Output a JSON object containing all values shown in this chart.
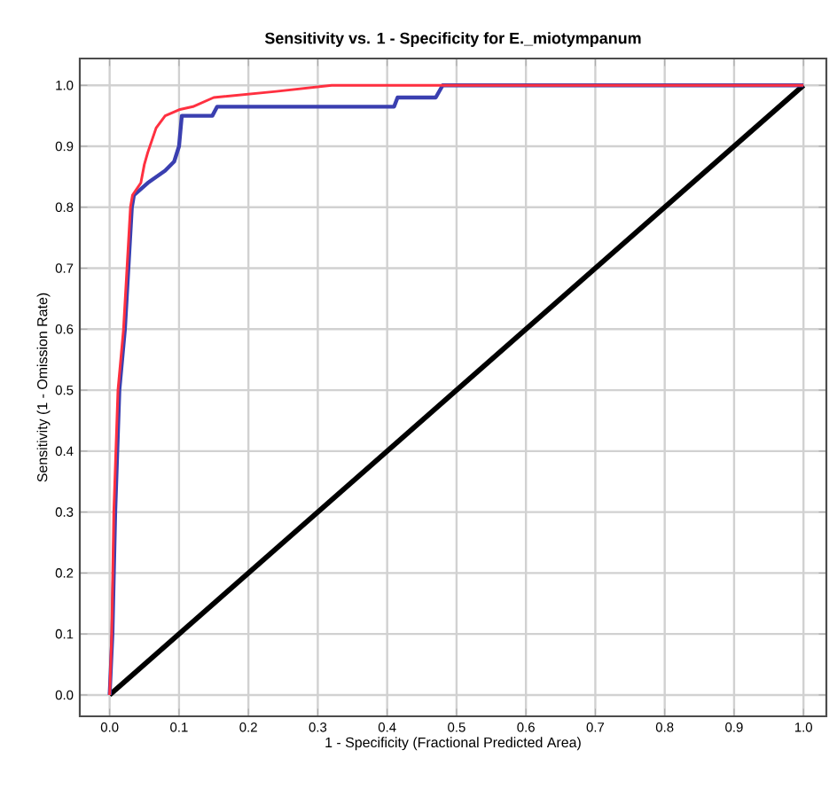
{
  "chart_data": {
    "type": "line",
    "title": "Sensitivity vs. 1 - Specificity for E._miotympanum",
    "xlabel": "1 - Specificity  (Fractional Predicted Area)",
    "ylabel": "Sensitivity  (1 - Omission Rate)",
    "series": [
      {
        "color": "#ff3040",
        "x": [
          0,
          0.003,
          0.006,
          0.012,
          0.02,
          0.025,
          0.03,
          0.033,
          0.045,
          0.05,
          0.055,
          0.067,
          0.08,
          0.1,
          0.12,
          0.15,
          0.24,
          0.32,
          1
        ],
        "values": [
          0,
          0.1,
          0.3,
          0.5,
          0.6,
          0.7,
          0.8,
          0.82,
          0.84,
          0.87,
          0.89,
          0.93,
          0.95,
          0.96,
          0.965,
          0.98,
          0.99,
          1.0,
          1.0
        ]
      },
      {
        "color": "#3a3fb0",
        "x": [
          0,
          0.004,
          0.008,
          0.014,
          0.022,
          0.027,
          0.032,
          0.035,
          0.055,
          0.08,
          0.093,
          0.1,
          0.104,
          0.148,
          0.155,
          0.41,
          0.415,
          0.47,
          0.48,
          1
        ],
        "values": [
          0,
          0.1,
          0.3,
          0.5,
          0.6,
          0.7,
          0.8,
          0.82,
          0.84,
          0.86,
          0.875,
          0.9,
          0.95,
          0.95,
          0.965,
          0.965,
          0.98,
          0.98,
          1.0,
          1.0
        ]
      },
      {
        "color": "#000000",
        "x": [
          0,
          1
        ],
        "values": [
          0,
          1
        ]
      }
    ],
    "xlim": [
      -0.043,
      1.033
    ],
    "ylim": [
      -0.035,
      1.044
    ],
    "xticks": [
      {
        "value": 0,
        "label": "0.0"
      },
      0.1,
      0.2,
      0.3,
      0.4,
      0.5,
      0.6,
      0.7,
      0.8,
      0.9,
      {
        "value": 1,
        "label": "1.0"
      }
    ],
    "yticks": [
      {
        "value": 0,
        "label": "0.0"
      },
      0.1,
      0.2,
      0.3,
      0.4,
      0.5,
      0.6,
      0.7,
      0.8,
      0.9,
      {
        "value": 1,
        "label": "1.0"
      }
    ],
    "grid": true,
    "marker": "none",
    "line_style": "solid"
  }
}
